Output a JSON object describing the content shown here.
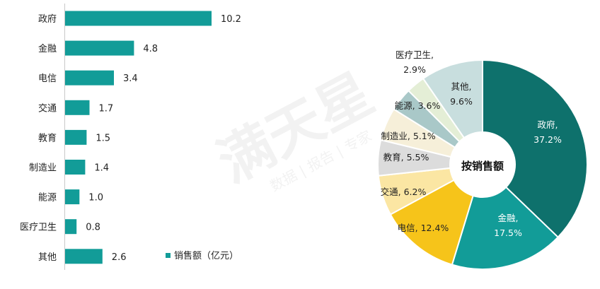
{
  "chart_data": [
    {
      "type": "bar",
      "orientation": "horizontal",
      "categories": [
        "政府",
        "金融",
        "电信",
        "交通",
        "教育",
        "制造业",
        "能源",
        "医疗卫生",
        "其他"
      ],
      "values": [
        10.2,
        4.8,
        3.4,
        1.7,
        1.5,
        1.4,
        1.0,
        0.8,
        2.6
      ],
      "value_labels": [
        "10.2",
        "4.8",
        "3.4",
        "1.7",
        "1.5",
        "1.4",
        "1.0",
        "0.8",
        "2.6"
      ],
      "series": [
        {
          "name": "销售额（亿元）",
          "values": [
            10.2,
            4.8,
            3.4,
            1.7,
            1.5,
            1.4,
            1.0,
            0.8,
            2.6
          ]
        }
      ],
      "legend": {
        "label": "销售额（亿元）",
        "position": "bottom",
        "color": "#129c98"
      },
      "bar_color": "#129c98",
      "xlim": [
        0,
        11
      ],
      "grid": false
    },
    {
      "type": "pie",
      "style": "donut",
      "center_label": "按销售额",
      "slices": [
        {
          "name": "政府",
          "value": 37.2,
          "label_line1": "政府,",
          "label_line2": "37.2%",
          "color": "#0e716c",
          "text_color": "#ffffff"
        },
        {
          "name": "金融",
          "value": 17.5,
          "label_line1": "金融,",
          "label_line2": "17.5%",
          "color": "#129c98",
          "text_color": "#ffffff"
        },
        {
          "name": "电信",
          "value": 12.4,
          "label_line1": "电信, 12.4%",
          "label_line2": "",
          "color": "#f6c41a",
          "text_color": "#222222"
        },
        {
          "name": "交通",
          "value": 6.2,
          "label_line1": "交通, 6.2%",
          "label_line2": "",
          "color": "#fbe6a3",
          "text_color": "#222222"
        },
        {
          "name": "教育",
          "value": 5.5,
          "label_line1": "教育, 5.5%",
          "label_line2": "",
          "color": "#dcdcdc",
          "text_color": "#222222"
        },
        {
          "name": "制造业",
          "value": 5.1,
          "label_line1": "制造业, 5.1%",
          "label_line2": "",
          "color": "#f6efd9",
          "text_color": "#222222"
        },
        {
          "name": "能源",
          "value": 3.6,
          "label_line1": "能源, 3.6%",
          "label_line2": "",
          "color": "#a9c8c8",
          "text_color": "#222222"
        },
        {
          "name": "医疗卫生",
          "value": 2.9,
          "label_line1": "医疗卫生,",
          "label_line2": "2.9%",
          "color": "#e4eed6",
          "text_color": "#222222"
        },
        {
          "name": "其他",
          "value": 9.6,
          "label_line1": "其他,",
          "label_line2": "9.6%",
          "color": "#c8dede",
          "text_color": "#222222"
        }
      ]
    }
  ],
  "watermark": {
    "text": "满天星",
    "subtext": "数据 | 报告 | 专家"
  }
}
